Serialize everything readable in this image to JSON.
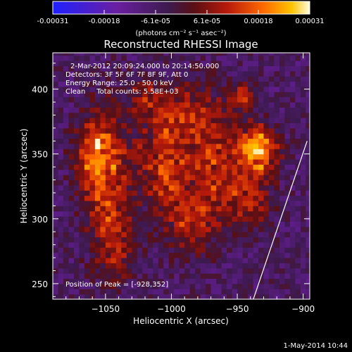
{
  "colorbar": {
    "ticks": [
      "-0.00031",
      "-0.00018",
      "-6.1e-05",
      "6.1e-05",
      "0.00018",
      "0.00031"
    ],
    "unit": "(photons cm⁻² s⁻¹ asec⁻²)",
    "colors": [
      "#2020ff",
      "#6a1fa0",
      "#3d1a4e",
      "#5a0f14",
      "#b81a0a",
      "#ff6a00",
      "#ffc400",
      "#fffbe0"
    ]
  },
  "chart_data": {
    "type": "heatmap",
    "title": "Reconstructed RHESSI Image",
    "xlabel": "Heliocentric X (arcsec)",
    "ylabel": "Heliocentric Y (arcsec)",
    "xlim": [
      -1090,
      -895
    ],
    "ylim": [
      238,
      428
    ],
    "xticks": [
      -1050,
      -1000,
      -950,
      -900
    ],
    "xtick_labels": [
      "−1050",
      "−1000",
      "−950",
      "−900"
    ],
    "yticks": [
      250,
      300,
      350,
      400
    ],
    "ytick_labels": [
      "250",
      "300",
      "350",
      "400"
    ],
    "value_range": [
      -0.00031,
      0.00031
    ],
    "sources": [
      {
        "x": -1050,
        "y": 330,
        "sx": 12,
        "sy": 40,
        "amp": 0.0002
      },
      {
        "x": -1060,
        "y": 350,
        "sx": 10,
        "sy": 18,
        "amp": 0.00018
      },
      {
        "x": -1040,
        "y": 280,
        "sx": 10,
        "sy": 18,
        "amp": 0.00014
      },
      {
        "x": -1005,
        "y": 345,
        "sx": 18,
        "sy": 25,
        "amp": 0.0002
      },
      {
        "x": -985,
        "y": 300,
        "sx": 15,
        "sy": 20,
        "amp": 0.00016
      },
      {
        "x": -990,
        "y": 385,
        "sx": 15,
        "sy": 15,
        "amp": 0.00014
      },
      {
        "x": -1020,
        "y": 395,
        "sx": 10,
        "sy": 10,
        "amp": 0.00012
      },
      {
        "x": -965,
        "y": 350,
        "sx": 12,
        "sy": 30,
        "amp": 0.00016
      },
      {
        "x": -935,
        "y": 355,
        "sx": 11,
        "sy": 12,
        "amp": 0.00031
      },
      {
        "x": -940,
        "y": 320,
        "sx": 12,
        "sy": 18,
        "amp": 0.00018
      },
      {
        "x": -945,
        "y": 395,
        "sx": 8,
        "sy": 8,
        "amp": 0.00014
      }
    ],
    "limb_line": [
      [
        -940,
        238
      ],
      [
        -897,
        360
      ]
    ],
    "annotations": {
      "time": "2-Mar-2012 20:09:24.000 to 20:14:50.000",
      "detectors": "Detectors: 3F 5F 6F 7F 8F 9F, Att 0",
      "energy": "Energy Range: 25.0 - 50.0 keV",
      "clean": "Clean     Total counts: 5.58E+03",
      "peak": "Position of Peak = [-928,352]"
    }
  },
  "footer": {
    "date": "1-May-2014 10:44"
  }
}
